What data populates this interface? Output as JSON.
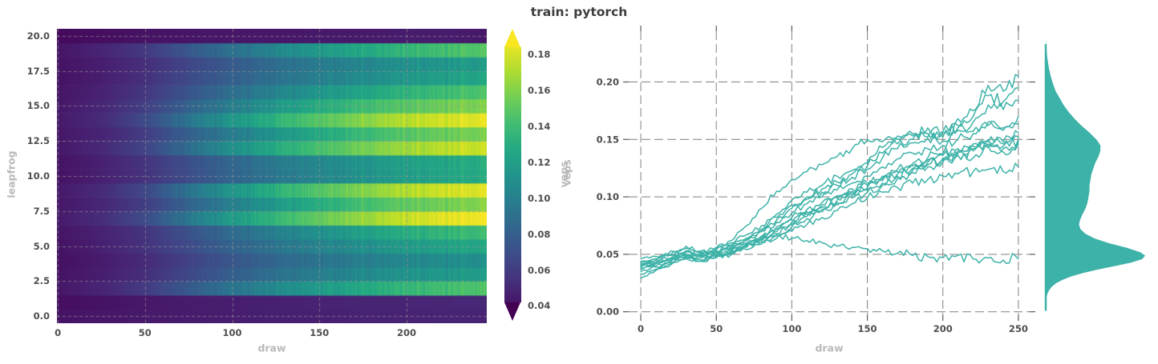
{
  "figure": {
    "suptitle": "train: pytorch"
  },
  "colors": {
    "accent_teal": "#3db2a8",
    "grid_gray": "#8c8c8c",
    "heatmap_grid": "#9a9a9a",
    "tick_label": "#4d4d4d",
    "axis_label": "#b9b9b9",
    "title_color": "#3d3d3d",
    "colorbar_arrow_top": "#f7e620",
    "colorbar_arrow_bottom": "#440154",
    "viridis_stops": [
      [
        0.0,
        "#440154"
      ],
      [
        0.1,
        "#482475"
      ],
      [
        0.2,
        "#414487"
      ],
      [
        0.3,
        "#355f8d"
      ],
      [
        0.4,
        "#2a788e"
      ],
      [
        0.5,
        "#21918c"
      ],
      [
        0.6,
        "#22a884"
      ],
      [
        0.7,
        "#44bf70"
      ],
      [
        0.8,
        "#7ad151"
      ],
      [
        0.9,
        "#bddf26"
      ],
      [
        1.0,
        "#fde725"
      ]
    ]
  },
  "colorbar": {
    "label": "veps",
    "tick_labels": [
      "0.04",
      "0.06",
      "0.08",
      "0.10",
      "0.12",
      "0.14",
      "0.16",
      "0.18"
    ],
    "tick_values": [
      0.04,
      0.06,
      0.08,
      0.1,
      0.12,
      0.14,
      0.16,
      0.18
    ],
    "edge_vmax": 0.184,
    "edge_vmin": 0.042,
    "extend": "both"
  },
  "chart_data": [
    {
      "id": "veps-heatmap",
      "type": "heatmap",
      "xlabel": "draw",
      "ylabel": "leapfrog",
      "x_ticks": [
        0,
        50,
        100,
        150,
        200
      ],
      "y_ticks": [
        0,
        2.5,
        5,
        7.5,
        10,
        12.5,
        15,
        17.5,
        20
      ],
      "y_tick_labels": [
        "0.0",
        "2.5",
        "5.0",
        "7.5",
        "10.0",
        "12.5",
        "15.0",
        "17.5",
        "20.0"
      ],
      "xlim": [
        -0.5,
        246
      ],
      "ylim": [
        -0.5,
        20.5
      ],
      "vmin": 0.032,
      "vmax": 0.19,
      "grid": "dashed",
      "sample_draws": [
        0,
        25,
        50,
        75,
        100,
        125,
        150,
        175,
        200,
        225,
        250
      ],
      "rows": [
        {
          "leapfrog": 0,
          "values": [
            0.04,
            0.042,
            0.043,
            0.044,
            0.045,
            0.046,
            0.046,
            0.047,
            0.047,
            0.048,
            0.048
          ]
        },
        {
          "leapfrog": 1,
          "values": [
            0.038,
            0.04,
            0.042,
            0.044,
            0.045,
            0.046,
            0.047,
            0.048,
            0.048,
            0.049,
            0.05
          ]
        },
        {
          "leapfrog": 2,
          "values": [
            0.042,
            0.048,
            0.059,
            0.076,
            0.093,
            0.106,
            0.117,
            0.127,
            0.135,
            0.142,
            0.148
          ]
        },
        {
          "leapfrog": 3,
          "values": [
            0.04,
            0.045,
            0.053,
            0.066,
            0.079,
            0.09,
            0.099,
            0.106,
            0.112,
            0.116,
            0.12
          ]
        },
        {
          "leapfrog": 4,
          "values": [
            0.039,
            0.044,
            0.051,
            0.063,
            0.074,
            0.084,
            0.092,
            0.099,
            0.104,
            0.108,
            0.112
          ]
        },
        {
          "leapfrog": 5,
          "values": [
            0.04,
            0.046,
            0.055,
            0.068,
            0.082,
            0.093,
            0.102,
            0.11,
            0.117,
            0.123,
            0.128
          ]
        },
        {
          "leapfrog": 6,
          "values": [
            0.041,
            0.047,
            0.056,
            0.072,
            0.087,
            0.1,
            0.111,
            0.121,
            0.129,
            0.136,
            0.142
          ]
        },
        {
          "leapfrog": 7,
          "values": [
            0.043,
            0.052,
            0.068,
            0.095,
            0.118,
            0.136,
            0.152,
            0.165,
            0.176,
            0.184,
            0.19
          ]
        },
        {
          "leapfrog": 8,
          "values": [
            0.042,
            0.049,
            0.061,
            0.082,
            0.1,
            0.116,
            0.13,
            0.142,
            0.15,
            0.157,
            0.163
          ]
        },
        {
          "leapfrog": 9,
          "values": [
            0.043,
            0.051,
            0.066,
            0.092,
            0.114,
            0.132,
            0.147,
            0.16,
            0.171,
            0.179,
            0.185
          ]
        },
        {
          "leapfrog": 10,
          "values": [
            0.04,
            0.046,
            0.055,
            0.069,
            0.083,
            0.094,
            0.104,
            0.112,
            0.119,
            0.125,
            0.13
          ]
        },
        {
          "leapfrog": 11,
          "values": [
            0.04,
            0.046,
            0.056,
            0.07,
            0.084,
            0.096,
            0.105,
            0.113,
            0.12,
            0.126,
            0.132
          ]
        },
        {
          "leapfrog": 12,
          "values": [
            0.042,
            0.05,
            0.064,
            0.088,
            0.11,
            0.128,
            0.143,
            0.156,
            0.166,
            0.174,
            0.18
          ]
        },
        {
          "leapfrog": 13,
          "values": [
            0.042,
            0.048,
            0.06,
            0.08,
            0.098,
            0.113,
            0.127,
            0.138,
            0.147,
            0.154,
            0.16
          ]
        },
        {
          "leapfrog": 14,
          "values": [
            0.043,
            0.051,
            0.067,
            0.093,
            0.115,
            0.133,
            0.148,
            0.161,
            0.172,
            0.18,
            0.186
          ]
        },
        {
          "leapfrog": 15,
          "values": [
            0.042,
            0.049,
            0.061,
            0.081,
            0.099,
            0.115,
            0.129,
            0.14,
            0.148,
            0.156,
            0.162
          ]
        },
        {
          "leapfrog": 16,
          "values": [
            0.041,
            0.047,
            0.057,
            0.073,
            0.089,
            0.102,
            0.114,
            0.124,
            0.133,
            0.141,
            0.148
          ]
        },
        {
          "leapfrog": 17,
          "values": [
            0.04,
            0.045,
            0.054,
            0.067,
            0.08,
            0.091,
            0.1,
            0.108,
            0.115,
            0.121,
            0.127
          ]
        },
        {
          "leapfrog": 18,
          "values": [
            0.04,
            0.045,
            0.053,
            0.065,
            0.077,
            0.088,
            0.097,
            0.104,
            0.11,
            0.115,
            0.12
          ]
        },
        {
          "leapfrog": 19,
          "values": [
            0.041,
            0.048,
            0.058,
            0.075,
            0.091,
            0.104,
            0.116,
            0.126,
            0.135,
            0.143,
            0.15
          ]
        },
        {
          "leapfrog": 20,
          "values": [
            0.036,
            0.038,
            0.04,
            0.041,
            0.042,
            0.042,
            0.043,
            0.043,
            0.044,
            0.044,
            0.042
          ]
        }
      ]
    },
    {
      "id": "veps-lines",
      "type": "line",
      "xlabel": "draw",
      "ylabel": "veps",
      "x_ticks": [
        0,
        50,
        100,
        150,
        200,
        250
      ],
      "y_ticks": [
        0,
        0.05,
        0.1,
        0.15,
        0.2
      ],
      "y_tick_labels": [
        "0.00",
        "0.05",
        "0.10",
        "0.15",
        "0.20"
      ],
      "xlim": [
        -8,
        257.5
      ],
      "ylim": [
        -0.003,
        0.2442
      ],
      "grid": "dashed",
      "x": [
        0,
        10,
        20,
        30,
        40,
        50,
        60,
        70,
        80,
        90,
        100,
        110,
        120,
        130,
        140,
        150,
        160,
        170,
        180,
        190,
        200,
        210,
        220,
        230,
        240,
        250
      ],
      "series": [
        {
          "name": "series-1",
          "values": [
            0.046,
            0.048,
            0.05,
            0.057,
            0.052,
            0.056,
            0.06,
            0.067,
            0.075,
            0.085,
            0.097,
            0.104,
            0.11,
            0.118,
            0.123,
            0.13,
            0.143,
            0.15,
            0.153,
            0.16,
            0.157,
            0.168,
            0.175,
            0.197,
            0.192,
            0.205
          ]
        },
        {
          "name": "series-2",
          "values": [
            0.044,
            0.046,
            0.049,
            0.055,
            0.05,
            0.054,
            0.058,
            0.064,
            0.072,
            0.082,
            0.093,
            0.1,
            0.107,
            0.113,
            0.12,
            0.127,
            0.138,
            0.146,
            0.15,
            0.155,
            0.152,
            0.162,
            0.17,
            0.188,
            0.183,
            0.195
          ]
        },
        {
          "name": "series-3",
          "values": [
            0.042,
            0.045,
            0.053,
            0.048,
            0.051,
            0.053,
            0.057,
            0.063,
            0.07,
            0.08,
            0.09,
            0.098,
            0.104,
            0.11,
            0.117,
            0.124,
            0.134,
            0.142,
            0.147,
            0.151,
            0.149,
            0.158,
            0.165,
            0.18,
            0.176,
            0.184
          ]
        },
        {
          "name": "series-4",
          "values": [
            0.04,
            0.043,
            0.046,
            0.052,
            0.048,
            0.052,
            0.056,
            0.062,
            0.07,
            0.078,
            0.086,
            0.094,
            0.1,
            0.106,
            0.112,
            0.118,
            0.126,
            0.133,
            0.138,
            0.142,
            0.145,
            0.15,
            0.155,
            0.165,
            0.16,
            0.17
          ]
        },
        {
          "name": "series-5",
          "values": [
            0.038,
            0.042,
            0.046,
            0.053,
            0.049,
            0.055,
            0.062,
            0.075,
            0.09,
            0.105,
            0.115,
            0.122,
            0.128,
            0.135,
            0.142,
            0.15,
            0.148,
            0.153,
            0.155,
            0.152,
            0.156,
            0.16,
            0.157,
            0.162,
            0.158,
            0.163
          ]
        },
        {
          "name": "series-6",
          "values": [
            0.043,
            0.045,
            0.047,
            0.053,
            0.049,
            0.052,
            0.055,
            0.06,
            0.066,
            0.074,
            0.082,
            0.089,
            0.095,
            0.101,
            0.107,
            0.112,
            0.118,
            0.124,
            0.129,
            0.134,
            0.138,
            0.142,
            0.146,
            0.15,
            0.148,
            0.156
          ]
        },
        {
          "name": "series-7",
          "values": [
            0.041,
            0.043,
            0.046,
            0.049,
            0.053,
            0.049,
            0.054,
            0.059,
            0.065,
            0.072,
            0.08,
            0.087,
            0.093,
            0.099,
            0.105,
            0.11,
            0.116,
            0.122,
            0.127,
            0.132,
            0.136,
            0.14,
            0.144,
            0.148,
            0.146,
            0.152
          ]
        },
        {
          "name": "series-8",
          "values": [
            0.039,
            0.042,
            0.045,
            0.05,
            0.047,
            0.05,
            0.053,
            0.058,
            0.064,
            0.07,
            0.078,
            0.085,
            0.091,
            0.097,
            0.103,
            0.108,
            0.114,
            0.12,
            0.125,
            0.13,
            0.134,
            0.138,
            0.142,
            0.146,
            0.144,
            0.15
          ]
        },
        {
          "name": "series-9",
          "values": [
            0.037,
            0.04,
            0.044,
            0.05,
            0.045,
            0.049,
            0.052,
            0.057,
            0.062,
            0.068,
            0.076,
            0.083,
            0.089,
            0.095,
            0.101,
            0.106,
            0.112,
            0.118,
            0.123,
            0.128,
            0.132,
            0.136,
            0.14,
            0.144,
            0.142,
            0.148
          ]
        },
        {
          "name": "series-10",
          "values": [
            0.035,
            0.039,
            0.043,
            0.048,
            0.045,
            0.048,
            0.051,
            0.056,
            0.061,
            0.067,
            0.074,
            0.081,
            0.087,
            0.093,
            0.099,
            0.104,
            0.11,
            0.116,
            0.121,
            0.126,
            0.13,
            0.136,
            0.134,
            0.143,
            0.139,
            0.146
          ]
        },
        {
          "name": "series-11",
          "values": [
            0.033,
            0.037,
            0.041,
            0.046,
            0.044,
            0.047,
            0.05,
            0.054,
            0.059,
            0.064,
            0.07,
            0.076,
            0.082,
            0.088,
            0.094,
            0.099,
            0.104,
            0.108,
            0.112,
            0.115,
            0.118,
            0.12,
            0.122,
            0.124,
            0.122,
            0.126
          ]
        },
        {
          "name": "series-12",
          "values": [
            0.029,
            0.036,
            0.042,
            0.047,
            0.044,
            0.048,
            0.053,
            0.059,
            0.063,
            0.066,
            0.064,
            0.062,
            0.06,
            0.057,
            0.056,
            0.055,
            0.053,
            0.051,
            0.049,
            0.048,
            0.047,
            0.049,
            0.046,
            0.047,
            0.045,
            0.046
          ]
        }
      ]
    },
    {
      "id": "veps-kde",
      "type": "area",
      "orientation": "vertical",
      "ylim": [
        -0.003,
        0.2442
      ],
      "profile": [
        [
          0.236,
          0.0
        ],
        [
          0.228,
          0.008
        ],
        [
          0.22,
          0.018
        ],
        [
          0.212,
          0.032
        ],
        [
          0.205,
          0.05
        ],
        [
          0.198,
          0.075
        ],
        [
          0.192,
          0.1
        ],
        [
          0.186,
          0.14
        ],
        [
          0.18,
          0.18
        ],
        [
          0.174,
          0.23
        ],
        [
          0.168,
          0.29
        ],
        [
          0.162,
          0.36
        ],
        [
          0.156,
          0.44
        ],
        [
          0.15,
          0.51
        ],
        [
          0.145,
          0.55
        ],
        [
          0.14,
          0.55
        ],
        [
          0.135,
          0.53
        ],
        [
          0.13,
          0.5
        ],
        [
          0.125,
          0.48
        ],
        [
          0.12,
          0.46
        ],
        [
          0.115,
          0.45
        ],
        [
          0.11,
          0.44
        ],
        [
          0.105,
          0.44
        ],
        [
          0.1,
          0.43
        ],
        [
          0.095,
          0.42
        ],
        [
          0.09,
          0.4
        ],
        [
          0.085,
          0.37
        ],
        [
          0.08,
          0.345
        ],
        [
          0.076,
          0.335
        ],
        [
          0.072,
          0.35
        ],
        [
          0.068,
          0.4
        ],
        [
          0.064,
          0.49
        ],
        [
          0.06,
          0.63
        ],
        [
          0.056,
          0.81
        ],
        [
          0.052,
          0.95
        ],
        [
          0.049,
          1.0
        ],
        [
          0.046,
          0.97
        ],
        [
          0.043,
          0.86
        ],
        [
          0.04,
          0.7
        ],
        [
          0.037,
          0.53
        ],
        [
          0.034,
          0.38
        ],
        [
          0.031,
          0.26
        ],
        [
          0.028,
          0.17
        ],
        [
          0.025,
          0.105
        ],
        [
          0.022,
          0.062
        ],
        [
          0.019,
          0.034
        ],
        [
          0.016,
          0.018
        ],
        [
          0.013,
          0.009
        ],
        [
          0.01,
          0.004
        ],
        [
          0.006,
          0.001
        ],
        [
          0.002,
          0.0
        ]
      ]
    }
  ]
}
